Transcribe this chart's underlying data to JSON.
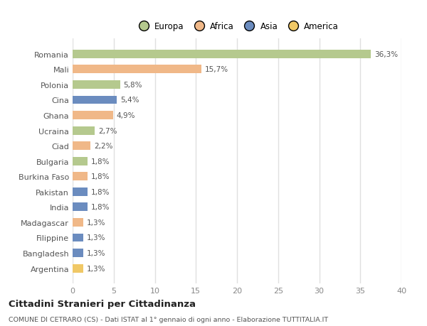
{
  "categories": [
    "Romania",
    "Mali",
    "Polonia",
    "Cina",
    "Ghana",
    "Ucraina",
    "Ciad",
    "Bulgaria",
    "Burkina Faso",
    "Pakistan",
    "India",
    "Madagascar",
    "Filippine",
    "Bangladesh",
    "Argentina"
  ],
  "values": [
    36.3,
    15.7,
    5.8,
    5.4,
    4.9,
    2.7,
    2.2,
    1.8,
    1.8,
    1.8,
    1.8,
    1.3,
    1.3,
    1.3,
    1.3
  ],
  "labels": [
    "36,3%",
    "15,7%",
    "5,8%",
    "5,4%",
    "4,9%",
    "2,7%",
    "2,2%",
    "1,8%",
    "1,8%",
    "1,8%",
    "1,8%",
    "1,3%",
    "1,3%",
    "1,3%",
    "1,3%"
  ],
  "colors": [
    "#b5c98e",
    "#f0b888",
    "#b5c98e",
    "#6b8cbf",
    "#f0b888",
    "#b5c98e",
    "#f0b888",
    "#b5c98e",
    "#f0b888",
    "#6b8cbf",
    "#6b8cbf",
    "#f0b888",
    "#6b8cbf",
    "#6b8cbf",
    "#f0c866"
  ],
  "legend_labels": [
    "Europa",
    "Africa",
    "Asia",
    "America"
  ],
  "legend_colors": [
    "#b5c98e",
    "#f0b888",
    "#6b8cbf",
    "#f0c866"
  ],
  "xlim": [
    0,
    40
  ],
  "xticks": [
    0,
    5,
    10,
    15,
    20,
    25,
    30,
    35,
    40
  ],
  "title": "Cittadini Stranieri per Cittadinanza",
  "subtitle": "COMUNE DI CETRARO (CS) - Dati ISTAT al 1° gennaio di ogni anno - Elaborazione TUTTITALIA.IT",
  "bg_color": "#ffffff",
  "grid_color": "#e0e0e0",
  "bar_height": 0.55
}
